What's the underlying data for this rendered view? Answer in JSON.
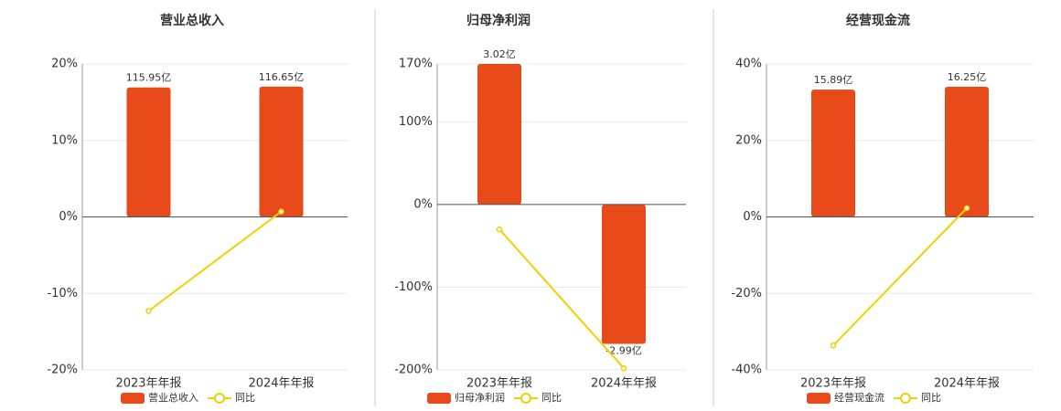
{
  "chart_data": [
    {
      "type": "bar",
      "title": "营业总收入",
      "categories": [
        "2023年年报",
        "2024年年报"
      ],
      "series": [
        {
          "name": "营业总收入",
          "type": "bar",
          "color": "#e84a1a",
          "axis": "y2",
          "values": [
            115.95,
            116.65
          ],
          "value_labels": [
            "115.95亿",
            "116.65亿"
          ]
        },
        {
          "name": "同比",
          "type": "line",
          "color": "#f0d000",
          "values": [
            -12.3,
            0.7
          ]
        }
      ],
      "ylim": [
        -20,
        20
      ],
      "yticks": [
        {
          "value": 20,
          "label": "20%"
        },
        {
          "value": 10,
          "label": "10%"
        },
        {
          "value": 0,
          "label": "0%"
        },
        {
          "value": -10,
          "label": "-10%"
        },
        {
          "value": -20,
          "label": "-20%"
        }
      ],
      "y2lim": [
        -137,
        137
      ],
      "grid": true,
      "legend": "bottom"
    },
    {
      "type": "bar",
      "title": "归母净利润",
      "categories": [
        "2023年年报",
        "2024年年报"
      ],
      "series": [
        {
          "name": "归母净利润",
          "type": "bar",
          "color": "#e84a1a",
          "axis": "y2",
          "values": [
            3.02,
            -2.99
          ],
          "value_labels": [
            "3.02亿",
            "-2.99亿"
          ]
        },
        {
          "name": "同比",
          "type": "line",
          "color": "#f0d000",
          "values": [
            -30,
            -198
          ]
        }
      ],
      "ylim": [
        -200,
        170
      ],
      "yticks": [
        {
          "value": 170,
          "label": "170%"
        },
        {
          "value": 100,
          "label": "100%"
        },
        {
          "value": 0,
          "label": "0%"
        },
        {
          "value": -100,
          "label": "-100%"
        },
        {
          "value": -200,
          "label": "-200%"
        }
      ],
      "y2lim": [
        -3.55,
        3.02
      ],
      "grid": true,
      "legend": "bottom"
    },
    {
      "type": "bar",
      "title": "经营现金流",
      "categories": [
        "2023年年报",
        "2024年年报"
      ],
      "series": [
        {
          "name": "经营现金流",
          "type": "bar",
          "color": "#e84a1a",
          "axis": "y2",
          "values": [
            15.89,
            16.25
          ],
          "value_labels": [
            "15.89亿",
            "16.25亿"
          ]
        },
        {
          "name": "同比",
          "type": "line",
          "color": "#f0d000",
          "values": [
            -33.6,
            2.3
          ]
        }
      ],
      "ylim": [
        -40,
        40
      ],
      "yticks": [
        {
          "value": 40,
          "label": "40%"
        },
        {
          "value": 20,
          "label": "20%"
        },
        {
          "value": 0,
          "label": "0%"
        },
        {
          "value": -20,
          "label": "-20%"
        },
        {
          "value": -40,
          "label": "-40%"
        }
      ],
      "y2lim": [
        -19.1,
        19.1
      ],
      "grid": true,
      "legend": "bottom"
    }
  ]
}
